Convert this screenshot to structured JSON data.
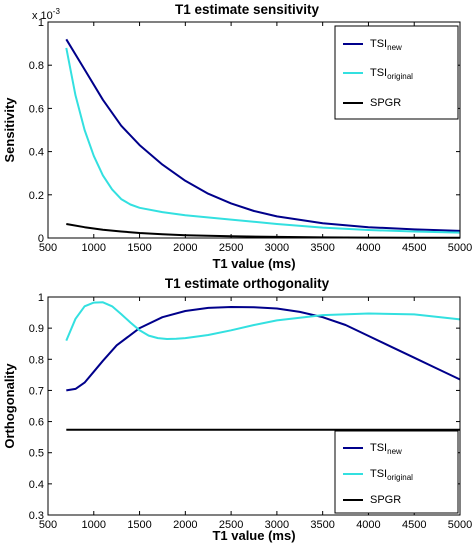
{
  "chart_data": [
    {
      "type": "line",
      "title": "T1 estimate sensitivity",
      "xlabel": "T1 value (ms)",
      "ylabel": "Sensitivity",
      "exponent_label": "x 10",
      "exponent_power": "-3",
      "xlim": [
        500,
        5000
      ],
      "ylim": [
        0,
        1
      ],
      "xticks": [
        "500",
        "1000",
        "1500",
        "2000",
        "2500",
        "3000",
        "3500",
        "4000",
        "4500",
        "5000"
      ],
      "yticks": [
        "0",
        "0.2",
        "0.4",
        "0.6",
        "0.8",
        "1"
      ],
      "grid": false,
      "legend_placement": "top-right",
      "series": [
        {
          "name": "TSI",
          "subscript": "new",
          "color": "#00008b",
          "x": [
            700,
            900,
            1100,
            1300,
            1500,
            1750,
            2000,
            2250,
            2500,
            2750,
            3000,
            3500,
            4000,
            4500,
            5000
          ],
          "y": [
            0.92,
            0.78,
            0.64,
            0.52,
            0.43,
            0.34,
            0.265,
            0.205,
            0.16,
            0.125,
            0.1,
            0.068,
            0.05,
            0.04,
            0.033
          ]
        },
        {
          "name": "TSI",
          "subscript": "original",
          "color": "#33e0e0",
          "x": [
            700,
            800,
            900,
            1000,
            1100,
            1200,
            1300,
            1400,
            1500,
            1750,
            2000,
            2500,
            3000,
            3500,
            4000,
            4500,
            5000
          ],
          "y": [
            0.88,
            0.66,
            0.5,
            0.38,
            0.29,
            0.225,
            0.18,
            0.155,
            0.14,
            0.12,
            0.105,
            0.085,
            0.065,
            0.048,
            0.037,
            0.03,
            0.025
          ]
        },
        {
          "name": "SPGR",
          "subscript": "",
          "color": "#000000",
          "x": [
            700,
            900,
            1100,
            1300,
            1500,
            1750,
            2000,
            2500,
            3000,
            3500,
            4000,
            4500,
            5000
          ],
          "y": [
            0.065,
            0.05,
            0.038,
            0.03,
            0.023,
            0.017,
            0.013,
            0.008,
            0.005,
            0.003,
            0.002,
            0.0015,
            0.001
          ]
        }
      ]
    },
    {
      "type": "line",
      "title": "T1 estimate orthogonality",
      "xlabel": "T1 value (ms)",
      "ylabel": "Orthogonality",
      "xlim": [
        500,
        5000
      ],
      "ylim": [
        0.3,
        1
      ],
      "xticks": [
        "500",
        "1000",
        "1500",
        "2000",
        "2500",
        "3000",
        "3500",
        "4000",
        "4500",
        "5000"
      ],
      "yticks": [
        "0.3",
        "0.4",
        "0.5",
        "0.6",
        "0.7",
        "0.8",
        "0.9",
        "1"
      ],
      "grid": false,
      "legend_placement": "bottom-right",
      "series": [
        {
          "name": "TSI",
          "subscript": "new",
          "color": "#00008b",
          "x": [
            700,
            800,
            900,
            1000,
            1100,
            1250,
            1500,
            1750,
            2000,
            2250,
            2500,
            2750,
            3000,
            3250,
            3500,
            3750,
            4000,
            4250,
            4500,
            4750,
            5000
          ],
          "y": [
            0.7,
            0.705,
            0.725,
            0.76,
            0.795,
            0.845,
            0.9,
            0.935,
            0.955,
            0.965,
            0.968,
            0.967,
            0.963,
            0.952,
            0.935,
            0.91,
            0.875,
            0.84,
            0.805,
            0.77,
            0.735
          ]
        },
        {
          "name": "TSI",
          "subscript": "original",
          "color": "#33e0e0",
          "x": [
            700,
            800,
            900,
            1000,
            1100,
            1200,
            1300,
            1400,
            1500,
            1600,
            1700,
            1800,
            1900,
            2000,
            2250,
            2500,
            2750,
            3000,
            3500,
            4000,
            4500,
            5000
          ],
          "y": [
            0.86,
            0.93,
            0.97,
            0.982,
            0.983,
            0.97,
            0.945,
            0.918,
            0.893,
            0.876,
            0.868,
            0.865,
            0.866,
            0.868,
            0.878,
            0.893,
            0.91,
            0.925,
            0.942,
            0.947,
            0.944,
            0.928
          ]
        },
        {
          "name": "SPGR",
          "subscript": "",
          "color": "#000000",
          "x": [
            700,
            5000
          ],
          "y": [
            0.574,
            0.574
          ]
        }
      ]
    }
  ]
}
